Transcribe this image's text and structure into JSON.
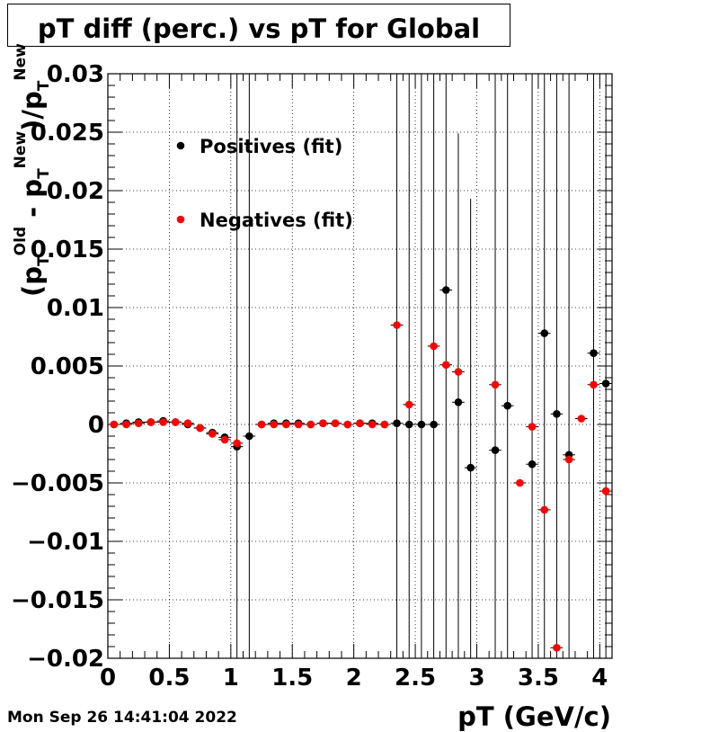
{
  "title": "pT diff (perc.) vs pT for Global",
  "timestamp": "Mon Sep 26 14:41:04 2022",
  "chart_data": {
    "type": "scatter",
    "title": "pT diff (perc.) vs pT for Global",
    "xlabel": "pT (GeV/c)",
    "ylabel": {
      "open": "(p",
      "sub1": "T",
      "sup1": "Old",
      "minus": " - p",
      "sub2": "T",
      "sup2": "New",
      "close": ")/p",
      "sub3": "T",
      "sup3": "New"
    },
    "xlim": [
      0,
      4.1
    ],
    "ylim": [
      -0.02,
      0.03
    ],
    "xticks": [
      {
        "value": 0,
        "label": "0"
      },
      {
        "value": 0.5,
        "label": "0.5"
      },
      {
        "value": 1,
        "label": "1"
      },
      {
        "value": 1.5,
        "label": "1.5"
      },
      {
        "value": 2,
        "label": "2"
      },
      {
        "value": 2.5,
        "label": "2.5"
      },
      {
        "value": 3,
        "label": "3"
      },
      {
        "value": 3.5,
        "label": "3.5"
      },
      {
        "value": 4,
        "label": "4"
      }
    ],
    "yticks": [
      {
        "value": 0.03,
        "label": "0.03"
      },
      {
        "value": 0.025,
        "label": "0.025"
      },
      {
        "value": 0.02,
        "label": "0.02"
      },
      {
        "value": 0.015,
        "label": "0.015"
      },
      {
        "value": 0.01,
        "label": "0.01"
      },
      {
        "value": 0.005,
        "label": "0.005"
      },
      {
        "value": 0,
        "label": "0"
      },
      {
        "value": -0.005,
        "label": "−0.005"
      },
      {
        "value": -0.01,
        "label": "−0.01"
      },
      {
        "value": -0.015,
        "label": "−0.015"
      },
      {
        "value": -0.02,
        "label": "−0.02"
      }
    ],
    "grid": true,
    "legend_placement": "top-left",
    "series": [
      {
        "name": "Positives (fit)",
        "color": "#000000",
        "points": [
          {
            "x": 0.05,
            "y": 0.0,
            "err": 0.0
          },
          {
            "x": 0.15,
            "y": 0.0001,
            "err": 0.0
          },
          {
            "x": 0.25,
            "y": 0.0002,
            "err": 0.0
          },
          {
            "x": 0.35,
            "y": 0.0002,
            "err": 0.0
          },
          {
            "x": 0.45,
            "y": 0.0003,
            "err": 0.0
          },
          {
            "x": 0.55,
            "y": 0.0002,
            "err": 0.0
          },
          {
            "x": 0.65,
            "y": 0.0,
            "err": 0.0
          },
          {
            "x": 0.75,
            "y": -0.0003,
            "err": 0.0
          },
          {
            "x": 0.85,
            "y": -0.0007,
            "err": 0.0
          },
          {
            "x": 0.95,
            "y": -0.0011,
            "err": 0.0
          },
          {
            "x": 1.05,
            "y": -0.0019,
            "err": 0.06
          },
          {
            "x": 1.15,
            "y": -0.001,
            "err": 0.06
          },
          {
            "x": 1.25,
            "y": 0.0,
            "err": 0.0
          },
          {
            "x": 1.35,
            "y": 0.0001,
            "err": 0.0
          },
          {
            "x": 1.45,
            "y": 0.0001,
            "err": 0.0
          },
          {
            "x": 1.55,
            "y": 0.0001,
            "err": 0.0
          },
          {
            "x": 1.65,
            "y": 0.0,
            "err": 0.0
          },
          {
            "x": 1.75,
            "y": 0.0001,
            "err": 0.0
          },
          {
            "x": 1.85,
            "y": 0.0001,
            "err": 0.0
          },
          {
            "x": 1.95,
            "y": 0.0,
            "err": 0.0
          },
          {
            "x": 2.05,
            "y": 0.0001,
            "err": 0.0
          },
          {
            "x": 2.15,
            "y": 0.0001,
            "err": 0.0
          },
          {
            "x": 2.25,
            "y": 0.0,
            "err": 0.0
          },
          {
            "x": 2.35,
            "y": 0.0001,
            "err": 0.06
          },
          {
            "x": 2.45,
            "y": 0.0,
            "err": 0.06
          },
          {
            "x": 2.55,
            "y": 0.0,
            "err": 0.06
          },
          {
            "x": 2.65,
            "y": 0.0,
            "err": 0.06
          },
          {
            "x": 2.75,
            "y": 0.0115,
            "err": 0.06
          },
          {
            "x": 2.85,
            "y": 0.0019,
            "err": 0.023
          },
          {
            "x": 2.95,
            "y": -0.0037,
            "err": 0.023
          },
          {
            "x": 3.15,
            "y": -0.0022,
            "err": 0.06
          },
          {
            "x": 3.25,
            "y": 0.0016,
            "err": 0.06
          },
          {
            "x": 3.45,
            "y": -0.0034,
            "err": 0.06
          },
          {
            "x": 3.55,
            "y": 0.0078,
            "err": 0.06
          },
          {
            "x": 3.65,
            "y": 0.0009,
            "err": 0.06
          },
          {
            "x": 3.75,
            "y": -0.0026,
            "err": 0.06
          },
          {
            "x": 3.95,
            "y": 0.0061,
            "err": 0.06
          },
          {
            "x": 4.05,
            "y": 0.0035,
            "err": 0.06
          }
        ]
      },
      {
        "name": "Negatives (fit)",
        "color": "#ff0000",
        "points": [
          {
            "x": 0.05,
            "y": 0.0,
            "err": 0.0
          },
          {
            "x": 0.15,
            "y": 0.0,
            "err": 0.0
          },
          {
            "x": 0.25,
            "y": 0.0001,
            "err": 0.0
          },
          {
            "x": 0.35,
            "y": 0.0002,
            "err": 0.0
          },
          {
            "x": 0.45,
            "y": 0.0002,
            "err": 0.0
          },
          {
            "x": 0.55,
            "y": 0.0002,
            "err": 0.0
          },
          {
            "x": 0.65,
            "y": 0.0001,
            "err": 0.0
          },
          {
            "x": 0.75,
            "y": -0.0003,
            "err": 0.0
          },
          {
            "x": 0.85,
            "y": -0.0008,
            "err": 0.0
          },
          {
            "x": 0.95,
            "y": -0.0013,
            "err": 0.0
          },
          {
            "x": 1.05,
            "y": -0.0016,
            "err": 0.0
          },
          {
            "x": 1.25,
            "y": 0.0,
            "err": 0.0
          },
          {
            "x": 1.35,
            "y": 0.0,
            "err": 0.0
          },
          {
            "x": 1.45,
            "y": 0.0,
            "err": 0.0
          },
          {
            "x": 1.55,
            "y": 0.0,
            "err": 0.0
          },
          {
            "x": 1.65,
            "y": 0.0,
            "err": 0.0
          },
          {
            "x": 1.75,
            "y": 0.0001,
            "err": 0.0
          },
          {
            "x": 1.85,
            "y": 0.0001,
            "err": 0.0
          },
          {
            "x": 1.95,
            "y": 0.0,
            "err": 0.0
          },
          {
            "x": 2.05,
            "y": 0.0001,
            "err": 0.0
          },
          {
            "x": 2.15,
            "y": 0.0,
            "err": 0.0
          },
          {
            "x": 2.25,
            "y": 0.0,
            "err": 0.0
          },
          {
            "x": 2.35,
            "y": 0.0085,
            "err": 0.0
          },
          {
            "x": 2.45,
            "y": 0.0017,
            "err": 0.0
          },
          {
            "x": 2.65,
            "y": 0.0067,
            "err": 0.0
          },
          {
            "x": 2.75,
            "y": 0.0051,
            "err": 0.0
          },
          {
            "x": 2.85,
            "y": 0.0045,
            "err": 0.0
          },
          {
            "x": 3.15,
            "y": 0.0034,
            "err": 0.0
          },
          {
            "x": 3.35,
            "y": -0.005,
            "err": 0.0
          },
          {
            "x": 3.45,
            "y": -0.0002,
            "err": 0.0
          },
          {
            "x": 3.55,
            "y": -0.0073,
            "err": 0.0
          },
          {
            "x": 3.65,
            "y": -0.0191,
            "err": 0.0
          },
          {
            "x": 3.75,
            "y": -0.003,
            "err": 0.0
          },
          {
            "x": 3.85,
            "y": 0.0005,
            "err": 0.0
          },
          {
            "x": 3.95,
            "y": 0.0034,
            "err": 0.0
          },
          {
            "x": 4.05,
            "y": -0.0057,
            "err": 0.0
          }
        ]
      }
    ]
  }
}
